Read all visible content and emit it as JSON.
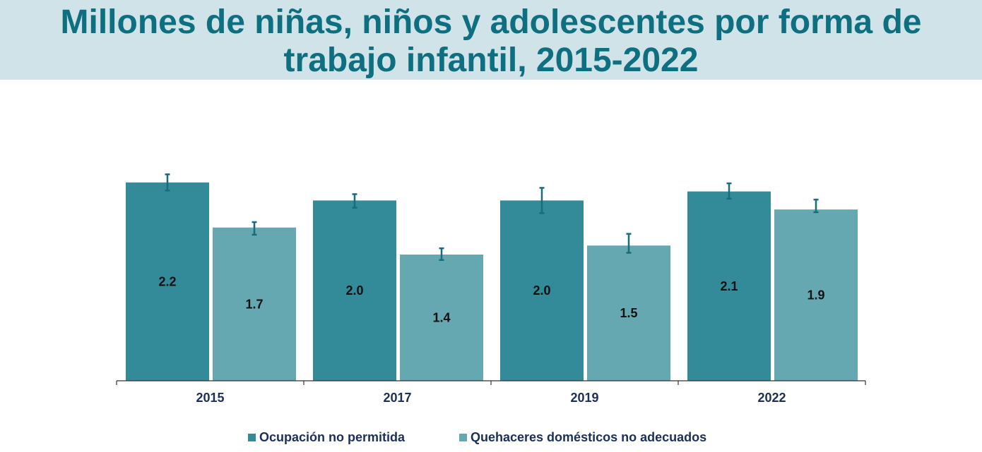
{
  "title": {
    "line1": "Millones de niñas, niños y adolescentes por forma de",
    "line2": "trabajo infantil, 2015-2022"
  },
  "colors": {
    "title_band": "#cfe3e8",
    "title_text": "#0d6f7f",
    "series_1": "#338a98",
    "series_2": "#66a8b2",
    "error_bar": "#176d7c",
    "label_text": "#111111",
    "axis_text": "#1c2f57"
  },
  "legend": {
    "items": [
      {
        "label": "Ocupación no permitida",
        "color": "#338a98"
      },
      {
        "label": "Quehaceres domésticos no adecuados",
        "color": "#66a8b2"
      }
    ]
  },
  "chart_data": {
    "type": "bar",
    "categories": [
      "2015",
      "2017",
      "2019",
      "2022"
    ],
    "series": [
      {
        "name": "Ocupación no permitida",
        "values": [
          2.2,
          2.0,
          2.0,
          2.1
        ],
        "labels": [
          "2.2",
          "2.0",
          "2.0",
          "2.1"
        ],
        "error_low": [
          2.11,
          1.92,
          1.86,
          2.02
        ],
        "error_high": [
          2.29,
          2.07,
          2.14,
          2.19
        ]
      },
      {
        "name": "Quehaceres domésticos no adecuados",
        "values": [
          1.7,
          1.4,
          1.5,
          1.9
        ],
        "labels": [
          "1.7",
          "1.4",
          "1.5",
          "1.9"
        ],
        "error_low": [
          1.62,
          1.34,
          1.42,
          1.87
        ],
        "error_high": [
          1.76,
          1.47,
          1.63,
          2.01
        ]
      }
    ],
    "ylim": [
      0,
      2.55
    ],
    "grid": false,
    "legend_position": "bottom",
    "title": "",
    "xlabel": "",
    "ylabel": ""
  }
}
